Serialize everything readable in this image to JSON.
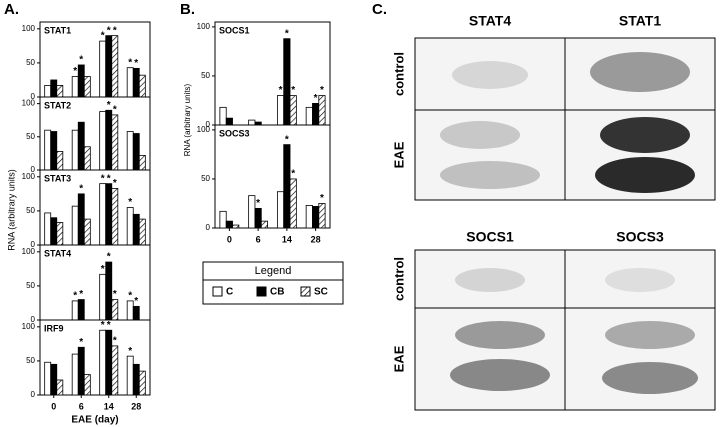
{
  "panel_labels": [
    "A.",
    "B.",
    "C."
  ],
  "y_label": "RNA (arbitrary units)",
  "x_label": "EAE (day)",
  "categories": [
    "0",
    "6",
    "14",
    "28"
  ],
  "legend": {
    "title": "Legend",
    "entries": [
      {
        "name": "C",
        "color": "#ffffff"
      },
      {
        "name": "CB",
        "color": "#000000"
      },
      {
        "name": "SC",
        "color": "hatch"
      }
    ]
  },
  "chart_data": [
    {
      "type": "bar",
      "title": "STAT1",
      "ylim": [
        0,
        110
      ],
      "yticks": [
        0,
        50,
        100
      ],
      "series": [
        {
          "values": [
            17,
            30,
            82,
            43
          ],
          "marks": [
            null,
            "*",
            "*",
            "*"
          ]
        },
        {
          "values": [
            25,
            47,
            90,
            42
          ],
          "marks": [
            null,
            "*",
            "*",
            "*"
          ]
        },
        {
          "values": [
            17,
            30,
            90,
            32
          ],
          "marks": [
            null,
            null,
            "*",
            null
          ]
        }
      ]
    },
    {
      "type": "bar",
      "title": "STAT2",
      "ylim": [
        0,
        110
      ],
      "yticks": [
        0,
        50,
        100
      ],
      "series": [
        {
          "values": [
            60,
            60,
            88,
            58
          ],
          "marks": [
            null,
            null,
            null,
            null
          ]
        },
        {
          "values": [
            58,
            72,
            90,
            55
          ],
          "marks": [
            null,
            null,
            "*",
            null
          ]
        },
        {
          "values": [
            28,
            35,
            83,
            22
          ],
          "marks": [
            null,
            null,
            "*",
            null
          ]
        }
      ]
    },
    {
      "type": "bar",
      "title": "STAT3",
      "ylim": [
        0,
        110
      ],
      "yticks": [
        0,
        50,
        100
      ],
      "series": [
        {
          "values": [
            47,
            57,
            90,
            55
          ],
          "marks": [
            null,
            null,
            "*",
            "*"
          ]
        },
        {
          "values": [
            40,
            75,
            90,
            45
          ],
          "marks": [
            null,
            "*",
            "*",
            null
          ]
        },
        {
          "values": [
            33,
            38,
            83,
            38
          ],
          "marks": [
            null,
            null,
            "*",
            null
          ]
        }
      ]
    },
    {
      "type": "bar",
      "title": "STAT4",
      "ylim": [
        0,
        110
      ],
      "yticks": [
        0,
        50,
        100
      ],
      "series": [
        {
          "values": [
            0,
            28,
            67,
            28
          ],
          "marks": [
            null,
            "*",
            "*",
            "*"
          ]
        },
        {
          "values": [
            0,
            30,
            85,
            20
          ],
          "marks": [
            null,
            "*",
            "*",
            "*"
          ]
        },
        {
          "values": [
            0,
            0,
            30,
            0
          ],
          "marks": [
            null,
            null,
            "*",
            null
          ]
        }
      ]
    },
    {
      "type": "bar",
      "title": "IRF9",
      "ylim": [
        0,
        110
      ],
      "yticks": [
        0,
        50,
        100
      ],
      "series": [
        {
          "values": [
            48,
            60,
            95,
            57
          ],
          "marks": [
            null,
            null,
            "*",
            "*"
          ]
        },
        {
          "values": [
            45,
            70,
            95,
            45
          ],
          "marks": [
            null,
            "*",
            "*",
            null
          ]
        },
        {
          "values": [
            22,
            30,
            72,
            35
          ],
          "marks": [
            null,
            null,
            "*",
            null
          ]
        }
      ]
    },
    {
      "type": "bar",
      "title": "SOCS1",
      "ylim": [
        0,
        105
      ],
      "yticks": [
        0,
        50,
        100
      ],
      "series": [
        {
          "values": [
            18,
            5,
            30,
            18
          ],
          "marks": [
            null,
            null,
            "*",
            null
          ]
        },
        {
          "values": [
            7,
            3,
            88,
            22
          ],
          "marks": [
            null,
            null,
            "*",
            "*"
          ]
        },
        {
          "values": [
            0,
            0,
            30,
            30
          ],
          "marks": [
            null,
            null,
            "*",
            "*"
          ]
        }
      ]
    },
    {
      "type": "bar",
      "title": "SOCS3",
      "ylim": [
        0,
        105
      ],
      "yticks": [
        0,
        50,
        100
      ],
      "series": [
        {
          "values": [
            17,
            33,
            37,
            23
          ],
          "marks": [
            null,
            null,
            null,
            null
          ]
        },
        {
          "values": [
            7,
            20,
            85,
            22
          ],
          "marks": [
            null,
            "*",
            "*",
            null
          ]
        },
        {
          "values": [
            3,
            7,
            50,
            25
          ],
          "marks": [
            null,
            null,
            "*",
            "*"
          ]
        }
      ]
    }
  ],
  "images": {
    "top_headers": [
      "STAT4",
      "STAT1"
    ],
    "bottom_headers": [
      "SOCS1",
      "SOCS3"
    ],
    "row_labels": [
      "control",
      "EAE",
      "control",
      "EAE"
    ]
  }
}
